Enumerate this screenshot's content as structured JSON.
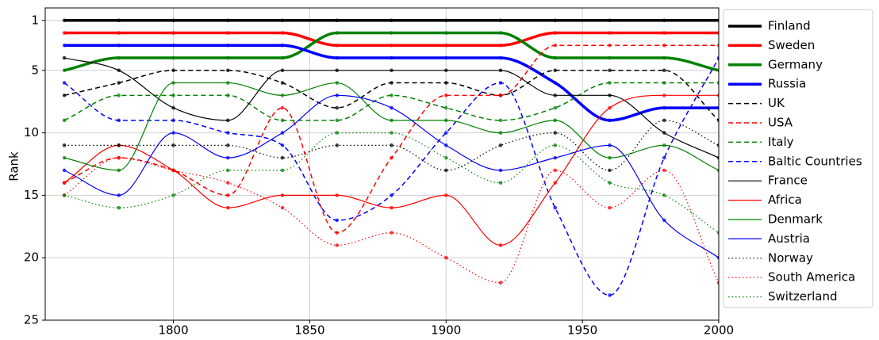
{
  "chart_data": {
    "type": "line",
    "y_label": "Rank",
    "x": [
      1760,
      1780,
      1800,
      1820,
      1840,
      1860,
      1880,
      1900,
      1920,
      1940,
      1960,
      1980,
      2000
    ],
    "xlim": [
      1753,
      2000
    ],
    "xticks": [
      1800,
      1850,
      1900,
      1950,
      2000
    ],
    "ylim": [
      25,
      0
    ],
    "yticks": [
      1,
      5,
      10,
      15,
      20,
      25
    ],
    "y_inverted": true,
    "grid": true,
    "legend": "outside right",
    "series": [
      {
        "name": "Finland",
        "color": "#000000",
        "style": "solid",
        "width": 3.5,
        "values": [
          1,
          1,
          1,
          1,
          1,
          1,
          1,
          1,
          1,
          1,
          1,
          1,
          1
        ]
      },
      {
        "name": "Sweden",
        "color": "#ff0000",
        "style": "solid",
        "width": 3.5,
        "values": [
          2,
          2,
          2,
          2,
          2,
          3,
          3,
          3,
          3,
          2,
          2,
          2,
          2
        ]
      },
      {
        "name": "Germany",
        "color": "#008000",
        "style": "solid",
        "width": 3.5,
        "values": [
          5,
          4,
          4,
          4,
          4,
          2,
          2,
          2,
          2,
          4,
          4,
          4,
          5
        ]
      },
      {
        "name": "Russia",
        "color": "#0000ff",
        "style": "solid",
        "width": 3.5,
        "values": [
          3,
          3,
          3,
          3,
          3,
          4,
          4,
          4,
          4,
          6,
          9,
          8,
          8
        ]
      },
      {
        "name": "UK",
        "color": "#000000",
        "style": "dashed",
        "width": 1.5,
        "values": [
          7,
          6,
          5,
          5,
          6,
          8,
          6,
          6,
          7,
          5,
          5,
          5,
          9
        ]
      },
      {
        "name": "USA",
        "color": "#ff0000",
        "style": "dashed",
        "width": 1.5,
        "values": [
          14,
          12,
          13,
          15,
          8,
          18,
          12,
          7,
          7,
          3,
          3,
          3,
          3
        ]
      },
      {
        "name": "Italy",
        "color": "#008000",
        "style": "dashed",
        "width": 1.5,
        "values": [
          9,
          7,
          7,
          7,
          9,
          9,
          7,
          8,
          9,
          8,
          6,
          6,
          6
        ]
      },
      {
        "name": "Baltic Countries",
        "color": "#0000ff",
        "style": "dashed",
        "width": 1.5,
        "values": [
          6,
          9,
          9,
          10,
          11,
          17,
          15,
          10,
          6,
          16,
          23,
          12,
          4
        ]
      },
      {
        "name": "France",
        "color": "#000000",
        "style": "solid",
        "width": 1.2,
        "values": [
          4,
          5,
          8,
          9,
          5,
          5,
          5,
          5,
          5,
          7,
          7,
          10,
          12
        ]
      },
      {
        "name": "Africa",
        "color": "#ff0000",
        "style": "solid",
        "width": 1.2,
        "values": [
          14,
          11,
          13,
          16,
          15,
          15,
          16,
          15,
          19,
          14,
          8,
          7,
          7
        ]
      },
      {
        "name": "Denmark",
        "color": "#008000",
        "style": "solid",
        "width": 1.2,
        "values": [
          12,
          13,
          6,
          6,
          7,
          6,
          9,
          9,
          10,
          9,
          12,
          11,
          13
        ]
      },
      {
        "name": "Austria",
        "color": "#0000ff",
        "style": "solid",
        "width": 1.2,
        "values": [
          13,
          15,
          10,
          12,
          10,
          7,
          8,
          11,
          13,
          12,
          11,
          17,
          20
        ]
      },
      {
        "name": "Norway",
        "color": "#000000",
        "style": "dotted",
        "width": 1.2,
        "values": [
          11,
          11,
          11,
          11,
          12,
          11,
          11,
          13,
          11,
          10,
          13,
          9,
          11
        ]
      },
      {
        "name": "South America",
        "color": "#ff0000",
        "style": "dotted",
        "width": 1.2,
        "values": [
          15,
          12,
          13,
          14,
          16,
          19,
          18,
          20,
          22,
          13,
          16,
          13,
          22
        ]
      },
      {
        "name": "Switzerland",
        "color": "#008000",
        "style": "dotted",
        "width": 1.2,
        "values": [
          15,
          16,
          15,
          13,
          13,
          10,
          10,
          12,
          14,
          11,
          14,
          15,
          18
        ]
      }
    ]
  }
}
